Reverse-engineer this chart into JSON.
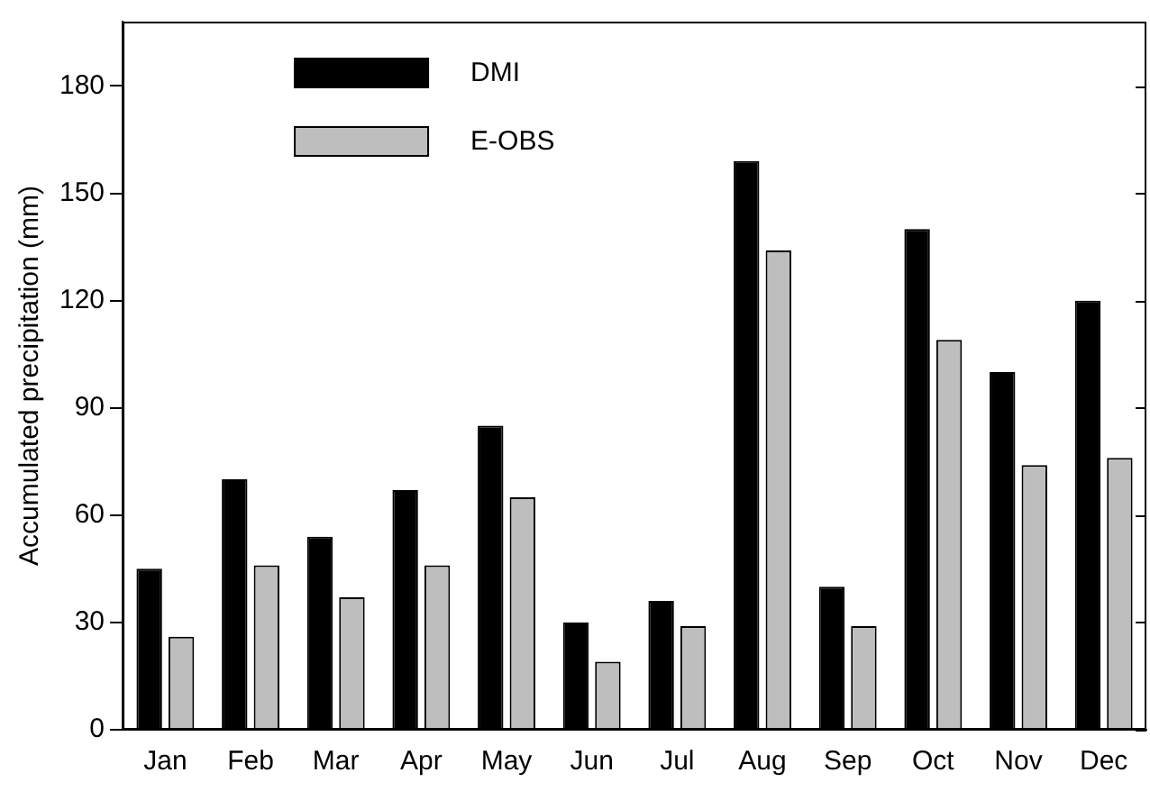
{
  "chart_data": {
    "type": "bar",
    "ylabel": "Accumulated precipitation (mm)",
    "categories": [
      "Jan",
      "Feb",
      "Mar",
      "Apr",
      "May",
      "Jun",
      "Jul",
      "Aug",
      "Sep",
      "Oct",
      "Nov",
      "Dec"
    ],
    "series": [
      {
        "name": "DMI",
        "color": "#000000",
        "values": [
          45,
          70,
          54,
          67,
          85,
          30,
          36,
          159,
          40,
          140,
          100,
          120
        ]
      },
      {
        "name": "E-OBS",
        "color": "#bebebe",
        "values": [
          26,
          46,
          37,
          46,
          65,
          19,
          29,
          134,
          29,
          109,
          74,
          76
        ]
      }
    ],
    "ylim": [
      0,
      198
    ],
    "yticks": [
      0,
      30,
      60,
      90,
      120,
      150,
      180
    ],
    "grid": false,
    "legend": "top left"
  }
}
